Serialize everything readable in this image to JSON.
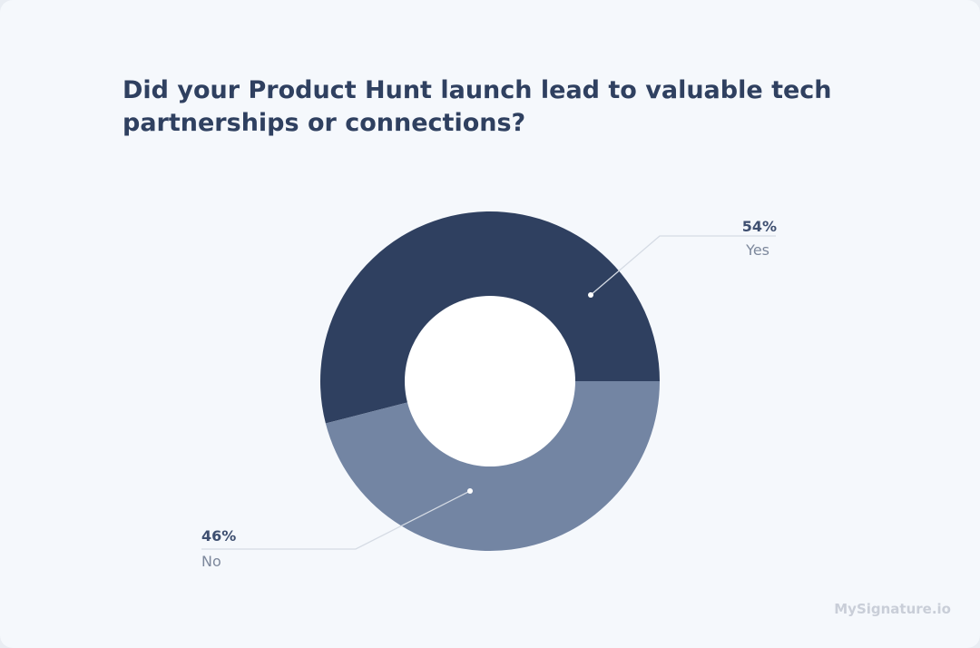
{
  "chart_data": {
    "type": "pie",
    "style": "donut",
    "title": "Did your Product Hunt launch lead to valuable tech partnerships or connections?",
    "slices": [
      {
        "label": "Yes",
        "value": 54,
        "value_label": "54%",
        "color": "#2f4060"
      },
      {
        "label": "No",
        "value": 46,
        "value_label": "46%",
        "color": "#7385a3"
      }
    ]
  },
  "branding": "MySignature.io",
  "colors": {
    "background": "#f5f8fc",
    "leader": "#d5dbe4"
  }
}
